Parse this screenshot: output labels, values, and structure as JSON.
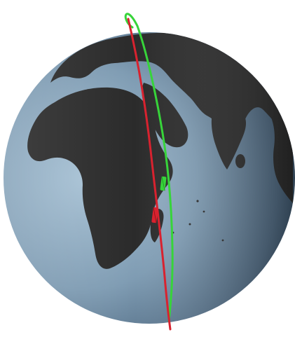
{
  "colors": {
    "background": "#ffffff",
    "ocean_light": "#9fb9cc",
    "ocean_mid": "#6f8ea6",
    "ocean_dark": "#24384a",
    "land": "#2b2b2b",
    "orbit_green": "#37d43a",
    "orbit_red": "#d8222f"
  },
  "icons": {
    "earth": "earth-globe-icon",
    "orbit_a": "green-orbit-icon",
    "orbit_b": "red-orbit-icon",
    "satellite_a": "green-satellite-icon",
    "satellite_b": "red-satellite-icon"
  }
}
